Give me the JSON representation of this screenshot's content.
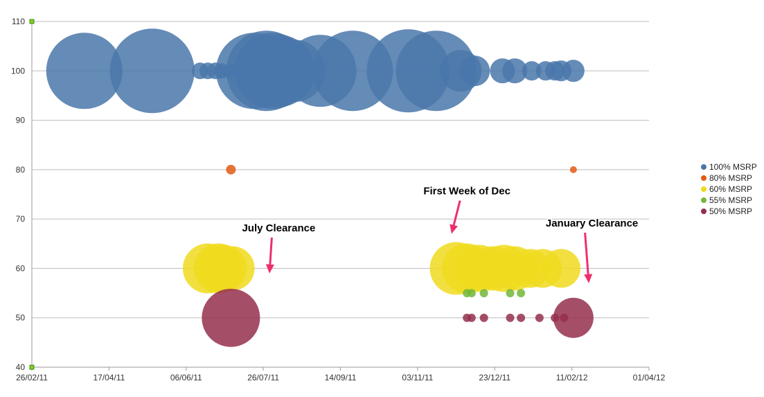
{
  "chart_data": {
    "type": "bubble",
    "title": "",
    "xlabel": "",
    "ylabel": "",
    "x_type": "date",
    "xlim": [
      "2011-02-26",
      "2012-04-01"
    ],
    "ylim": [
      40,
      110
    ],
    "x_ticks": [
      "26/02/11",
      "17/04/11",
      "06/06/11",
      "26/07/11",
      "14/09/11",
      "03/11/11",
      "23/12/11",
      "11/02/12",
      "01/04/12"
    ],
    "y_ticks": [
      40,
      50,
      60,
      70,
      80,
      90,
      100,
      110
    ],
    "grid": "horizontal",
    "legend": "right",
    "series": [
      {
        "name": "100% MSRP",
        "color": "#4a77aa",
        "points": [
          {
            "x": "2011-04-01",
            "y": 100,
            "size": 55
          },
          {
            "x": "2011-05-15",
            "y": 100,
            "size": 61
          },
          {
            "x": "2011-06-15",
            "y": 100,
            "size": 12
          },
          {
            "x": "2011-06-20",
            "y": 100,
            "size": 12
          },
          {
            "x": "2011-06-25",
            "y": 100,
            "size": 12
          },
          {
            "x": "2011-06-29",
            "y": 100,
            "size": 11
          },
          {
            "x": "2011-07-04",
            "y": 100,
            "size": 10
          },
          {
            "x": "2011-07-20",
            "y": 100,
            "size": 55
          },
          {
            "x": "2011-07-28",
            "y": 100,
            "size": 58
          },
          {
            "x": "2011-08-01",
            "y": 100,
            "size": 55
          },
          {
            "x": "2011-08-05",
            "y": 100,
            "size": 52
          },
          {
            "x": "2011-08-15",
            "y": 100,
            "size": 45
          },
          {
            "x": "2011-09-01",
            "y": 100,
            "size": 52
          },
          {
            "x": "2011-09-22",
            "y": 100,
            "size": 58
          },
          {
            "x": "2011-10-28",
            "y": 100,
            "size": 60
          },
          {
            "x": "2011-11-15",
            "y": 100,
            "size": 58
          },
          {
            "x": "2011-12-01",
            "y": 100,
            "size": 30
          },
          {
            "x": "2011-12-10",
            "y": 100,
            "size": 22
          },
          {
            "x": "2011-12-28",
            "y": 100,
            "size": 18
          },
          {
            "x": "2012-01-05",
            "y": 100,
            "size": 18
          },
          {
            "x": "2012-01-16",
            "y": 100,
            "size": 14
          },
          {
            "x": "2012-01-25",
            "y": 100,
            "size": 14
          },
          {
            "x": "2012-01-31",
            "y": 100,
            "size": 14
          },
          {
            "x": "2012-02-04",
            "y": 100,
            "size": 15
          },
          {
            "x": "2012-02-12",
            "y": 100,
            "size": 16
          }
        ]
      },
      {
        "name": "80% MSRP",
        "color": "#e35a14",
        "points": [
          {
            "x": "2011-07-05",
            "y": 80,
            "size": 7
          },
          {
            "x": "2012-02-12",
            "y": 80,
            "size": 5
          }
        ]
      },
      {
        "name": "60% MSRP",
        "color": "#f0da1e",
        "points": [
          {
            "x": "2011-06-20",
            "y": 60,
            "size": 36
          },
          {
            "x": "2011-06-27",
            "y": 60,
            "size": 36
          },
          {
            "x": "2011-06-30",
            "y": 60,
            "size": 34
          },
          {
            "x": "2011-07-06",
            "y": 60,
            "size": 32
          },
          {
            "x": "2011-11-28",
            "y": 60,
            "size": 38
          },
          {
            "x": "2011-12-05",
            "y": 60,
            "size": 36
          },
          {
            "x": "2011-12-13",
            "y": 60,
            "size": 34
          },
          {
            "x": "2011-12-22",
            "y": 60,
            "size": 32
          },
          {
            "x": "2011-12-29",
            "y": 60,
            "size": 34
          },
          {
            "x": "2012-01-05",
            "y": 60,
            "size": 32
          },
          {
            "x": "2012-01-15",
            "y": 60,
            "size": 28
          },
          {
            "x": "2012-01-23",
            "y": 60,
            "size": 28
          },
          {
            "x": "2012-02-04",
            "y": 60,
            "size": 28
          }
        ]
      },
      {
        "name": "55% MSRP",
        "color": "#72b73c",
        "points": [
          {
            "x": "2011-12-05",
            "y": 55,
            "size": 6
          },
          {
            "x": "2011-12-08",
            "y": 55,
            "size": 6
          },
          {
            "x": "2011-12-16",
            "y": 55,
            "size": 6
          },
          {
            "x": "2012-01-02",
            "y": 55,
            "size": 6
          },
          {
            "x": "2012-01-09",
            "y": 55,
            "size": 6
          }
        ]
      },
      {
        "name": "50% MSRP",
        "color": "#952f4e",
        "points": [
          {
            "x": "2011-07-05",
            "y": 50,
            "size": 42
          },
          {
            "x": "2011-12-05",
            "y": 50,
            "size": 6
          },
          {
            "x": "2011-12-08",
            "y": 50,
            "size": 6
          },
          {
            "x": "2011-12-16",
            "y": 50,
            "size": 6
          },
          {
            "x": "2012-01-02",
            "y": 50,
            "size": 6
          },
          {
            "x": "2012-01-09",
            "y": 50,
            "size": 6
          },
          {
            "x": "2012-01-21",
            "y": 50,
            "size": 6
          },
          {
            "x": "2012-01-31",
            "y": 50,
            "size": 6
          },
          {
            "x": "2012-02-06",
            "y": 50,
            "size": 6
          },
          {
            "x": "2012-02-12",
            "y": 50,
            "size": 29
          }
        ]
      }
    ],
    "annotations": [
      {
        "text": "July Clearance",
        "x": "2011-08-05",
        "y": 67.5,
        "arrow_to": {
          "x": "2011-07-30",
          "y": 59
        }
      },
      {
        "text": "First Week of Dec",
        "x": "2011-12-05",
        "y": 75,
        "arrow_to": {
          "x": "2011-11-25",
          "y": 67
        }
      },
      {
        "text": "January Clearance",
        "x": "2012-02-24",
        "y": 68.5,
        "arrow_to": {
          "x": "2012-02-22",
          "y": 57
        }
      }
    ]
  }
}
